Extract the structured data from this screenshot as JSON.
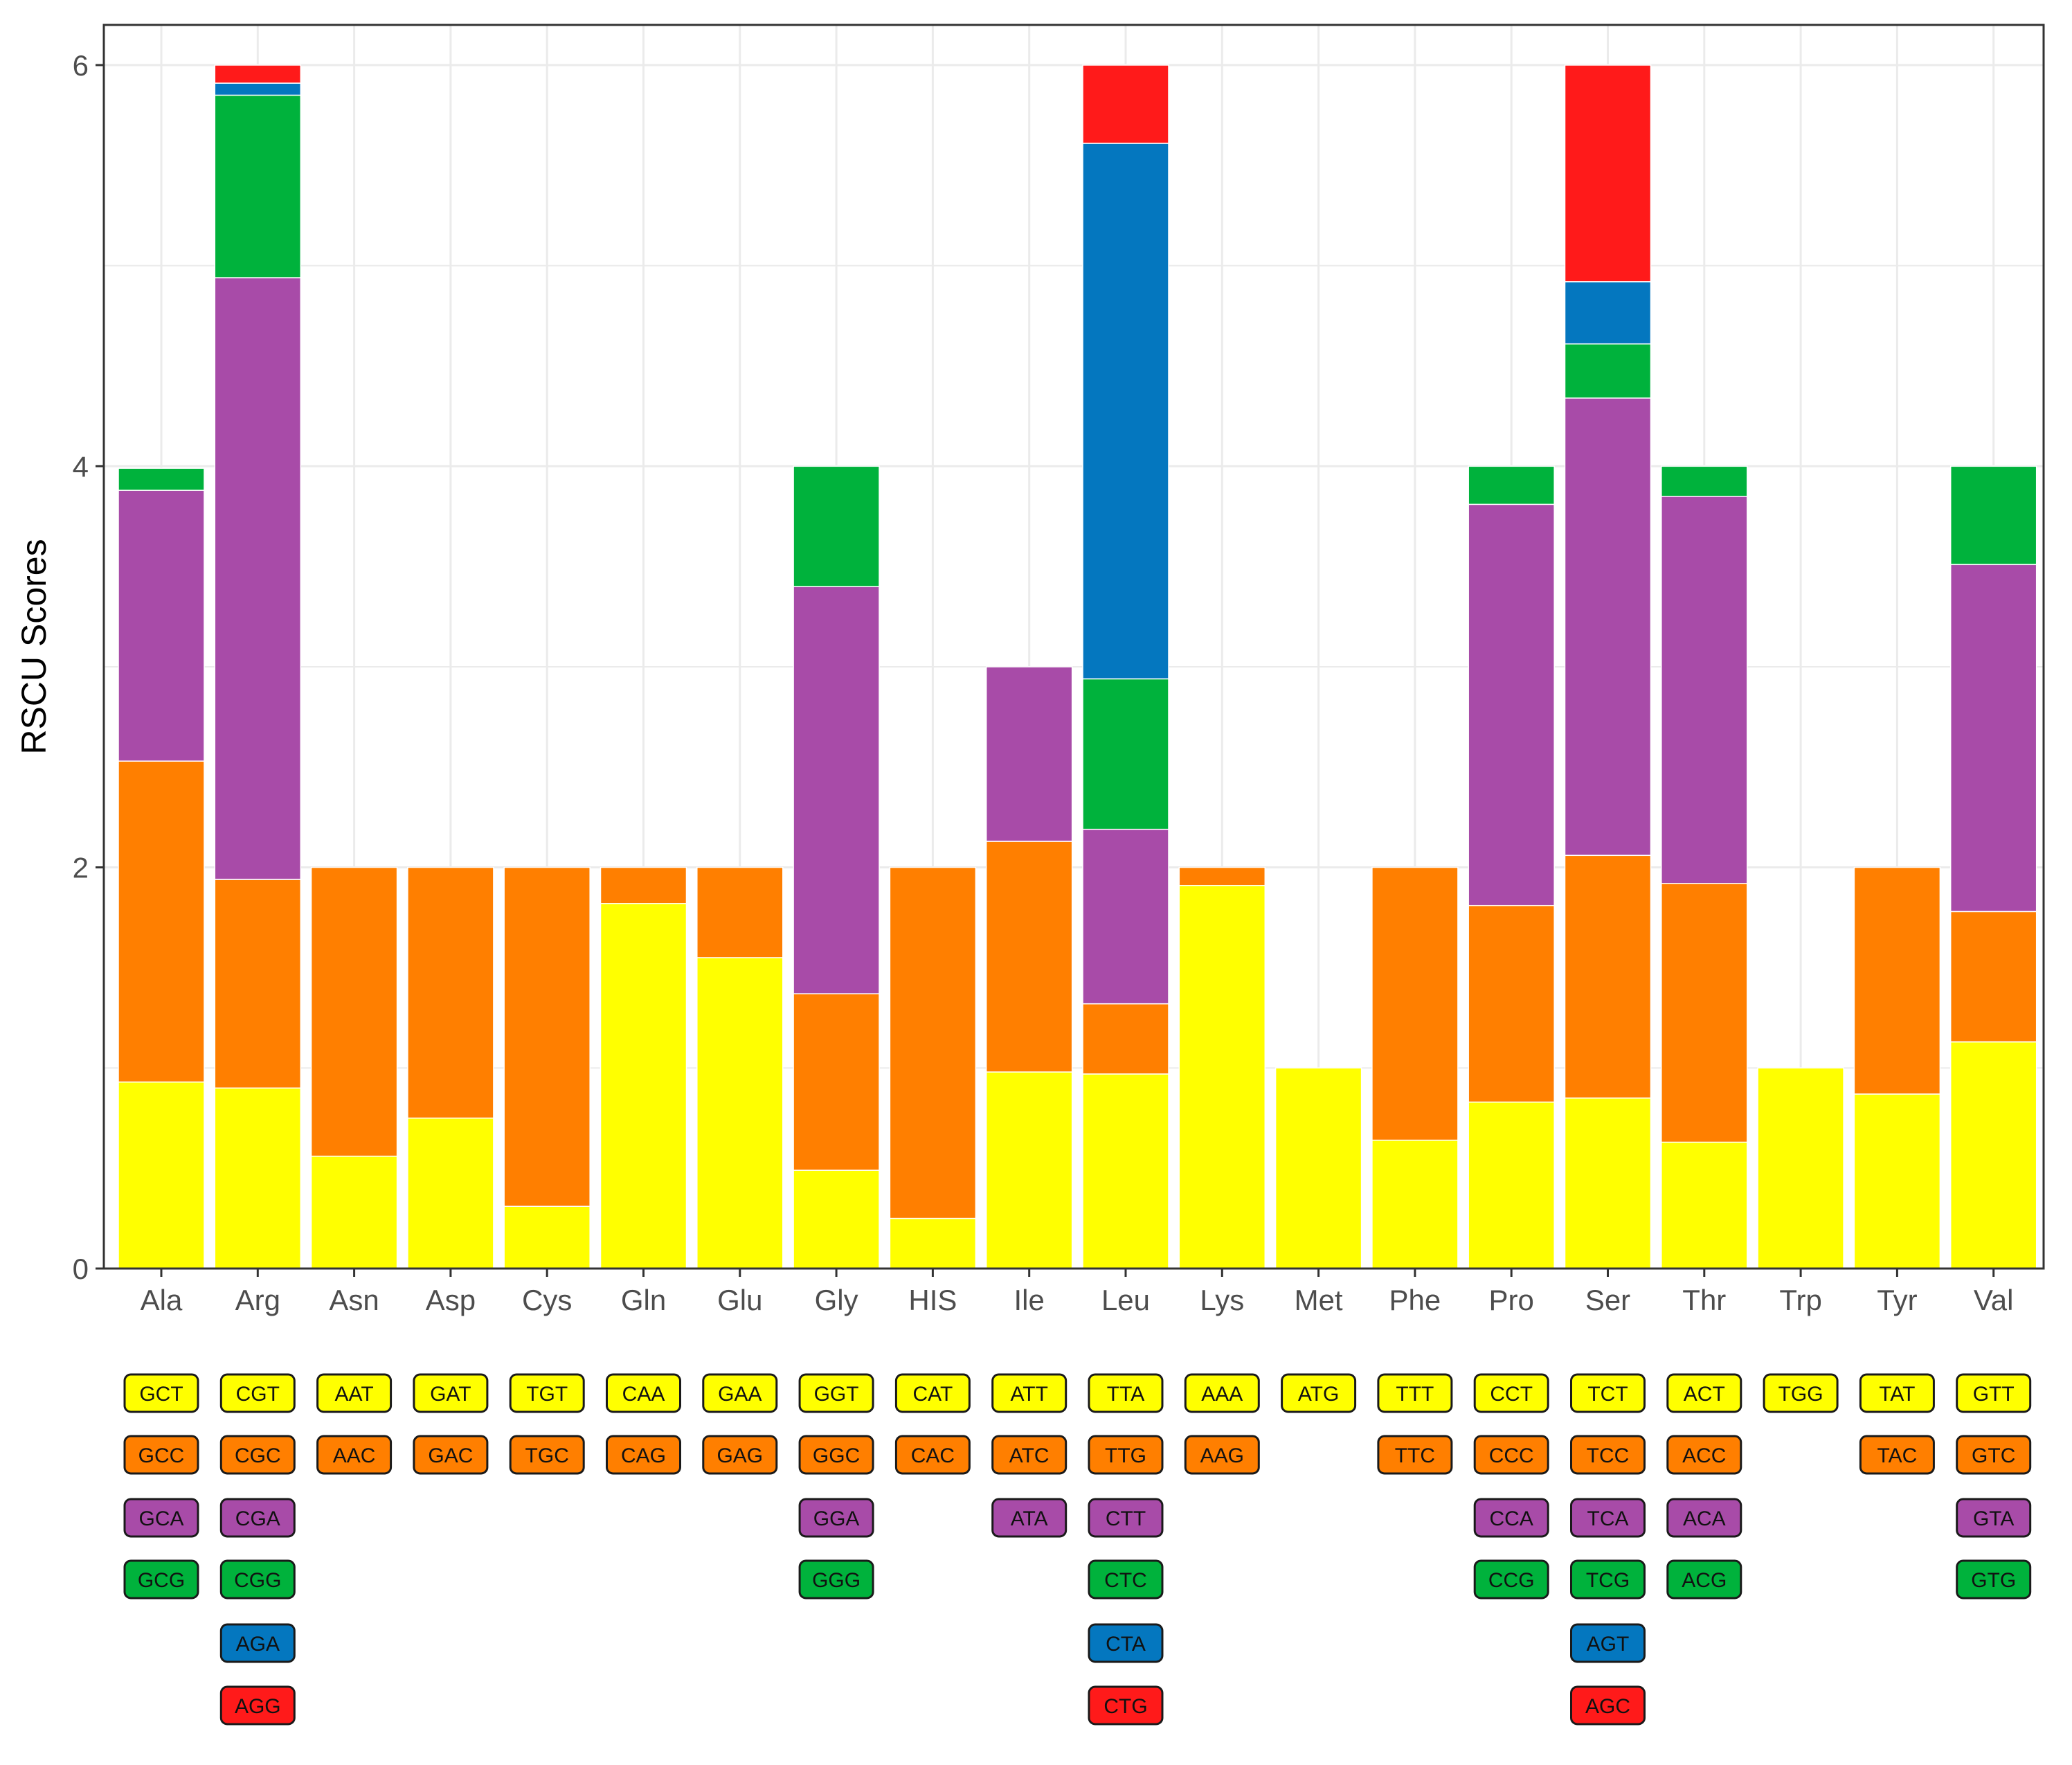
{
  "colors": {
    "yellow": "#FFFF00",
    "orange": "#FF7F00",
    "purple": "#A84BA8",
    "green": "#00B23C",
    "blue": "#0477BF",
    "red": "#FF1A1A",
    "grid": "#EBEBEB",
    "axis": "#333333",
    "tick_text": "#4D4D4D"
  },
  "chart_data": {
    "type": "bar",
    "stacked": true,
    "title": "",
    "xlabel": "",
    "ylabel": "RSCU Scores",
    "ylim": [
      0,
      6.2
    ],
    "yticks": [
      "0",
      "2",
      "4",
      "6"
    ],
    "grid": true,
    "categories": [
      "Ala",
      "Arg",
      "Asn",
      "Asp",
      "Cys",
      "Gln",
      "Glu",
      "Gly",
      "HIS",
      "Ile",
      "Leu",
      "Lys",
      "Met",
      "Phe",
      "Pro",
      "Ser",
      "Thr",
      "Trp",
      "Tyr",
      "Val"
    ],
    "stack_colors": [
      "yellow",
      "orange",
      "purple",
      "green",
      "blue",
      "red"
    ],
    "segments": [
      [
        0.93,
        1.6,
        1.35,
        0.11
      ],
      [
        0.9,
        1.04,
        3.0,
        0.91,
        0.06,
        0.09
      ],
      [
        0.56,
        1.44
      ],
      [
        0.75,
        1.25
      ],
      [
        0.31,
        1.69
      ],
      [
        1.82,
        0.18
      ],
      [
        1.55,
        0.45
      ],
      [
        0.49,
        0.88,
        2.03,
        0.6
      ],
      [
        0.25,
        1.75
      ],
      [
        0.98,
        1.15,
        0.87
      ],
      [
        0.97,
        0.35,
        0.87,
        0.75,
        2.67,
        0.39
      ],
      [
        1.91,
        0.09
      ],
      [
        1.0
      ],
      [
        0.64,
        1.36
      ],
      [
        0.83,
        0.98,
        2.0,
        0.19
      ],
      [
        0.85,
        1.21,
        2.28,
        0.27,
        0.31,
        1.08
      ],
      [
        0.63,
        1.29,
        1.93,
        0.15
      ],
      [
        1.0
      ],
      [
        0.87,
        1.13
      ],
      [
        1.13,
        0.65,
        1.73,
        0.49
      ]
    ],
    "codons": [
      [
        "GCT",
        "GCC",
        "GCA",
        "GCG"
      ],
      [
        "CGT",
        "CGC",
        "CGA",
        "CGG",
        "AGA",
        "AGG"
      ],
      [
        "AAT",
        "AAC"
      ],
      [
        "GAT",
        "GAC"
      ],
      [
        "TGT",
        "TGC"
      ],
      [
        "CAA",
        "CAG"
      ],
      [
        "GAA",
        "GAG"
      ],
      [
        "GGT",
        "GGC",
        "GGA",
        "GGG"
      ],
      [
        "CAT",
        "CAC"
      ],
      [
        "ATT",
        "ATC",
        "ATA"
      ],
      [
        "TTA",
        "TTG",
        "CTT",
        "CTC",
        "CTA",
        "CTG"
      ],
      [
        "AAA",
        "AAG"
      ],
      [
        "ATG"
      ],
      [
        "TTT",
        "TTC"
      ],
      [
        "CCT",
        "CCC",
        "CCA",
        "CCG"
      ],
      [
        "TCT",
        "TCC",
        "TCA",
        "TCG",
        "AGT",
        "AGC"
      ],
      [
        "ACT",
        "ACC",
        "ACA",
        "ACG"
      ],
      [
        "TGG"
      ],
      [
        "TAT",
        "TAC"
      ],
      [
        "GTT",
        "GTC",
        "GTA",
        "GTG"
      ]
    ]
  }
}
